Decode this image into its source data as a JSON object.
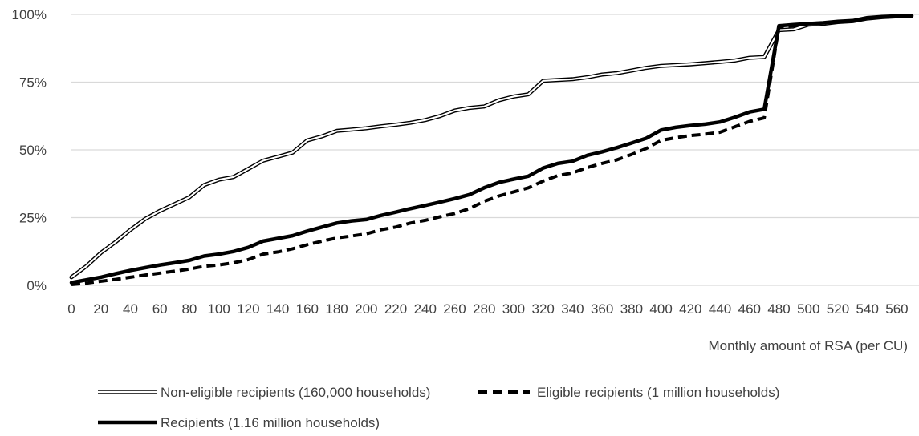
{
  "chart_data": {
    "type": "line",
    "title": "",
    "xlabel": "Monthly amount of RSA (per CU)",
    "ylabel": "",
    "x_tick_labels": [
      "0",
      "20",
      "40",
      "60",
      "80",
      "100",
      "120",
      "140",
      "160",
      "180",
      "200",
      "220",
      "240",
      "260",
      "280",
      "300",
      "320",
      "340",
      "360",
      "380",
      "400",
      "420",
      "440",
      "460",
      "480",
      "500",
      "520",
      "540",
      "560"
    ],
    "y_tick_labels": [
      "0%",
      "25%",
      "50%",
      "75%",
      "100%"
    ],
    "xlim": [
      0,
      575
    ],
    "ylim": [
      0,
      100
    ],
    "grid": "horizontal",
    "legend_position": "bottom",
    "series": [
      {
        "name": "Non-eligible recipients (160,000 households)",
        "style": "double",
        "color": "#000000",
        "x": [
          0,
          10,
          20,
          30,
          40,
          50,
          60,
          70,
          80,
          90,
          100,
          110,
          120,
          130,
          140,
          150,
          160,
          170,
          180,
          190,
          200,
          210,
          220,
          230,
          240,
          250,
          260,
          270,
          280,
          290,
          300,
          310,
          320,
          330,
          340,
          350,
          360,
          370,
          380,
          390,
          400,
          410,
          420,
          430,
          440,
          450,
          460,
          470,
          480,
          490,
          500,
          510,
          520,
          530,
          540,
          550,
          560,
          570
        ],
        "y": [
          3,
          7,
          12,
          16,
          20.5,
          24.5,
          27.5,
          30,
          32.5,
          37,
          39,
          40,
          43,
          46,
          47.5,
          49,
          53.5,
          55,
          57,
          57.5,
          58,
          58.7,
          59.3,
          60,
          61,
          62.5,
          64.5,
          65.5,
          66,
          68.3,
          69.7,
          70.5,
          75.5,
          75.8,
          76.1,
          76.8,
          77.8,
          78.3,
          79.3,
          80.3,
          81,
          81.3,
          81.6,
          82,
          82.5,
          83,
          84,
          84.3,
          94.2,
          94.5,
          96.2,
          96.5,
          97.2,
          97.5,
          98.5,
          99,
          99.3,
          99.5
        ]
      },
      {
        "name": "Eligible recipients (1 million households)",
        "style": "dashed",
        "color": "#000000",
        "x": [
          0,
          10,
          20,
          30,
          40,
          50,
          60,
          70,
          80,
          90,
          100,
          110,
          120,
          130,
          140,
          150,
          160,
          170,
          180,
          190,
          200,
          210,
          220,
          230,
          240,
          250,
          260,
          270,
          280,
          290,
          300,
          310,
          320,
          330,
          340,
          350,
          360,
          370,
          380,
          390,
          400,
          410,
          420,
          430,
          440,
          450,
          460,
          470,
          480,
          490,
          500,
          510,
          520,
          530,
          540,
          550,
          560,
          570
        ],
        "y": [
          0.3,
          0.8,
          1.5,
          2.2,
          3,
          3.8,
          4.5,
          5.2,
          6,
          7,
          7.5,
          8.3,
          9.5,
          11.5,
          12.3,
          13.5,
          15,
          16.3,
          17.5,
          18.2,
          19,
          20.5,
          21.5,
          23,
          24,
          25.3,
          26.5,
          28.3,
          31,
          33,
          34.5,
          36,
          38.5,
          40.5,
          41.5,
          43.5,
          45,
          46.3,
          48.3,
          50.5,
          53.5,
          54.5,
          55.3,
          55.8,
          56.5,
          58.5,
          60.5,
          61.8,
          95.5,
          95.8,
          96.5,
          96.8,
          97.3,
          97.7,
          98.7,
          99.2,
          99.4,
          99.5
        ]
      },
      {
        "name": "Recipients (1.16 million households)",
        "style": "thick",
        "color": "#000000",
        "x": [
          0,
          10,
          20,
          30,
          40,
          50,
          60,
          70,
          80,
          90,
          100,
          110,
          120,
          130,
          140,
          150,
          160,
          170,
          180,
          190,
          200,
          210,
          220,
          230,
          240,
          250,
          260,
          270,
          280,
          290,
          300,
          310,
          320,
          330,
          340,
          350,
          360,
          370,
          380,
          390,
          400,
          410,
          420,
          430,
          440,
          450,
          460,
          470,
          480,
          490,
          500,
          510,
          520,
          530,
          540,
          550,
          560,
          570
        ],
        "y": [
          1,
          2,
          3,
          4.3,
          5.5,
          6.5,
          7.5,
          8.3,
          9.2,
          10.8,
          11.5,
          12.5,
          14,
          16.3,
          17.3,
          18.3,
          20,
          21.5,
          23,
          23.8,
          24.3,
          25.8,
          27,
          28.3,
          29.5,
          30.7,
          32,
          33.5,
          36,
          38,
          39.2,
          40.3,
          43.3,
          45,
          45.8,
          48,
          49.3,
          50.8,
          52.5,
          54.3,
          57.3,
          58.3,
          59,
          59.5,
          60.3,
          62,
          64,
          65,
          95.8,
          96.2,
          96.6,
          96.9,
          97.4,
          97.7,
          98.8,
          99.2,
          99.4,
          99.5
        ]
      }
    ]
  }
}
